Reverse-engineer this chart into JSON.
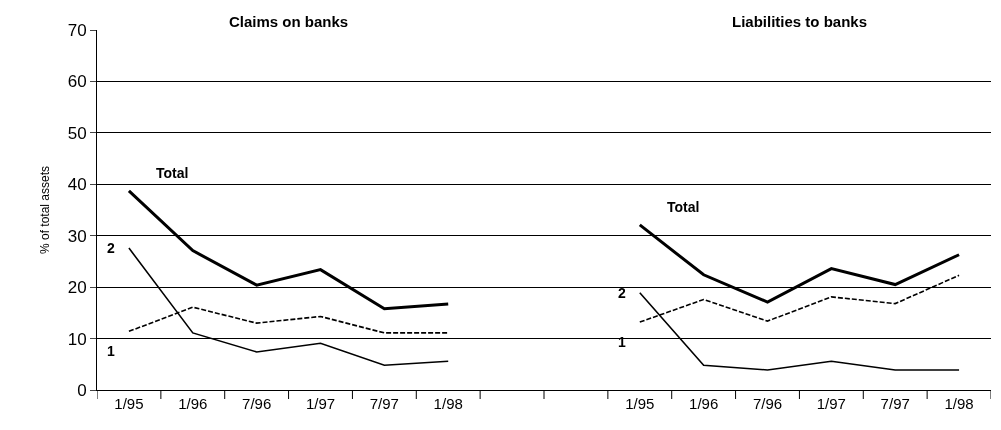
{
  "chart_data": {
    "type": "line",
    "ylabel": "% of total assets",
    "annotations": [
      "Claims on banks",
      "Liabilities to banks"
    ],
    "categories": [
      "1/95",
      "1/96",
      "7/96",
      "1/97",
      "7/97",
      "1/98",
      null,
      null,
      "1/95",
      "1/96",
      "7/96",
      "1/97",
      "7/97",
      "1/98"
    ],
    "series": [
      {
        "name": "Total",
        "color": "#000000",
        "line_style": "solid",
        "values": [
          38.7,
          27.1,
          20.4,
          23.4,
          15.8,
          16.7,
          null,
          null,
          32.1,
          22.4,
          17.1,
          23.6,
          20.5,
          26.3
        ]
      },
      {
        "name": "2",
        "color": "#000000",
        "line_style": "solid",
        "values": [
          27.6,
          11.1,
          7.4,
          9.1,
          4.8,
          5.6,
          null,
          null,
          18.9,
          4.8,
          3.9,
          5.6,
          3.9,
          3.9
        ]
      },
      {
        "name": "1",
        "color": "#000000",
        "line_style": "dashed",
        "values": [
          11.4,
          16.1,
          13.0,
          14.3,
          11.1,
          11.1,
          null,
          null,
          13.2,
          17.6,
          13.4,
          18.1,
          16.8,
          22.3
        ]
      }
    ],
    "ylim": [
      0,
      70
    ],
    "yticks": [
      0,
      10,
      20,
      30,
      40,
      50,
      60,
      70
    ],
    "grid": "y",
    "legend": false,
    "marker": "none"
  }
}
